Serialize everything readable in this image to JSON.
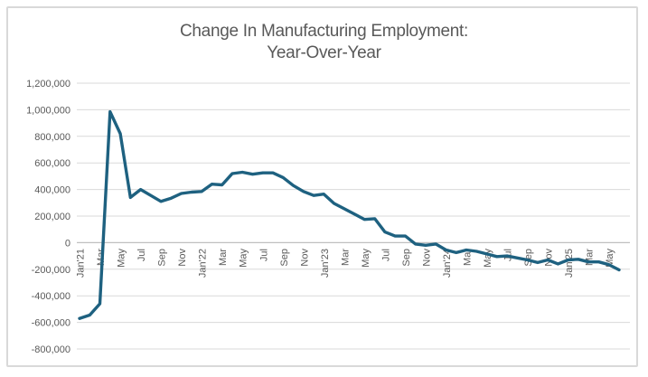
{
  "chart_data": {
    "type": "line",
    "title": "Change In Manufacturing Employment:",
    "subtitle": "Year-Over-Year",
    "x": [
      "Jan'21",
      "Feb'21",
      "Mar'21",
      "Apr'21",
      "May'21",
      "Jun'21",
      "Jul'21",
      "Aug'21",
      "Sep'21",
      "Oct'21",
      "Nov'21",
      "Dec'21",
      "Jan'22",
      "Feb'22",
      "Mar'22",
      "Apr'22",
      "May'22",
      "Jun'22",
      "Jul'22",
      "Aug'22",
      "Sep'22",
      "Oct'22",
      "Nov'22",
      "Dec'22",
      "Jan'23",
      "Feb'23",
      "Mar'23",
      "Apr'23",
      "May'23",
      "Jun'23",
      "Jul'23",
      "Aug'23",
      "Sep'23",
      "Oct'23",
      "Nov'23",
      "Dec'23",
      "Jan'24",
      "Feb'24",
      "Mar'24",
      "Apr'24",
      "May'24",
      "Jun'24",
      "Jul'24",
      "Aug'24",
      "Sep'24",
      "Oct'24",
      "Nov'24",
      "Dec'24",
      "Jan'25",
      "Feb'25",
      "Mar'25",
      "Apr'25",
      "May'25",
      "Jun'25"
    ],
    "values": [
      -570000,
      -545000,
      -460000,
      985000,
      820000,
      340000,
      400000,
      355000,
      310000,
      335000,
      370000,
      380000,
      385000,
      440000,
      435000,
      520000,
      530000,
      515000,
      525000,
      525000,
      490000,
      430000,
      385000,
      355000,
      365000,
      295000,
      255000,
      215000,
      175000,
      180000,
      80000,
      50000,
      50000,
      -10000,
      -20000,
      -10000,
      -55000,
      -75000,
      -55000,
      -65000,
      -85000,
      -105000,
      -100000,
      -115000,
      -130000,
      -150000,
      -130000,
      -160000,
      -130000,
      -125000,
      -145000,
      -145000,
      -165000,
      -205000
    ],
    "x_tick_labels": [
      "Jan'21",
      "Mar",
      "May",
      "Jul",
      "Sep",
      "Nov",
      "Jan'22",
      "Mar",
      "May",
      "Jul",
      "Sep",
      "Nov",
      "Jan'23",
      "Mar",
      "May",
      "Jul",
      "Sep",
      "Nov",
      "Jan'24",
      "Mar",
      "May",
      "Jul",
      "Sep",
      "Nov",
      "Jan'25",
      "Mar",
      "May"
    ],
    "x_tick_every": 2,
    "y_tick_labels": [
      "1,200,000",
      "1,000,000",
      "800,000",
      "600,000",
      "400,000",
      "200,000",
      "0",
      "-200,000",
      "-400,000",
      "-600,000",
      "-800,000"
    ],
    "ylim": [
      -800000,
      1200000
    ],
    "y_step": 200000,
    "grid": "horizontal",
    "legend": "none",
    "xlabel": "",
    "ylabel": "",
    "line_color": "#1e6180",
    "text_color": "#595959",
    "gridline_color": "#d9d9d9",
    "axis_color": "#bfbfbf",
    "frame_color": "#d9d9d9"
  }
}
